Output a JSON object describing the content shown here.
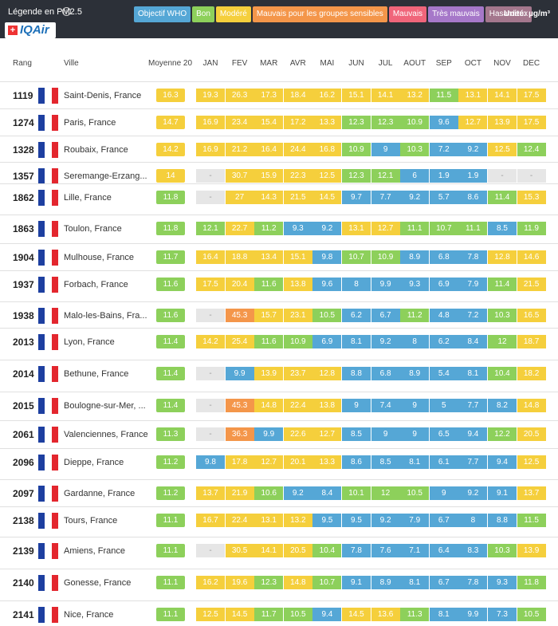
{
  "legend": {
    "title": "Légende en PM2.5",
    "info_glyph": "i",
    "logo_text": "IQAir",
    "logo_flag": "+",
    "unit": "Unité: µg/m³",
    "items": [
      {
        "label": "Objectif WHO",
        "color": "#55a7d6"
      },
      {
        "label": "Bon",
        "color": "#8dd05b"
      },
      {
        "label": "Modéré",
        "color": "#f5cf3c"
      },
      {
        "label": "Mauvais pour les groupes sensibles",
        "color": "#f4964a"
      },
      {
        "label": "Mauvais",
        "color": "#f0657a"
      },
      {
        "label": "Très mauvais",
        "color": "#a678c9"
      },
      {
        "label": "Hasardeux",
        "color": "#a4778d"
      }
    ]
  },
  "headers": {
    "rank": "Rang",
    "city": "Ville",
    "avg": "Moyenne 20",
    "months": [
      "JAN",
      "FEV",
      "MAR",
      "AVR",
      "MAI",
      "JUN",
      "JUL",
      "AOUT",
      "SEP",
      "OCT",
      "NOV",
      "DEC"
    ]
  },
  "colors": {
    "who": "#55a7d6",
    "good": "#8dd05b",
    "moderate": "#f5cf3c",
    "sensitive": "#f4964a",
    "nodata": "#e6e6e6"
  },
  "rows": [
    {
      "rank": "1119",
      "city": "Saint-Denis, France",
      "avg": "16.3",
      "months": [
        "19.3",
        "26.3",
        "17.3",
        "18.4",
        "16.2",
        "15.1",
        "14.1",
        "13.2",
        "11.5",
        "13.1",
        "14.1",
        "17.5"
      ]
    },
    {
      "rank": "1274",
      "city": "Paris, France",
      "avg": "14.7",
      "months": [
        "16.9",
        "23.4",
        "15.4",
        "17.2",
        "13.3",
        "12.3",
        "12.3",
        "10.9",
        "9.6",
        "12.7",
        "13.9",
        "17.5"
      ]
    },
    {
      "rank": "1328",
      "city": "Roubaix, France",
      "avg": "14.2",
      "months": [
        "16.9",
        "21.2",
        "16.4",
        "24.4",
        "16.8",
        "10.9",
        "9",
        "10.3",
        "7.2",
        "9.2",
        "12.5",
        "12.4"
      ]
    },
    {
      "rank": "1357",
      "city": "Seremange-Erzang...",
      "avg": "14",
      "months": [
        "-",
        "30.7",
        "15.9",
        "22.3",
        "12.5",
        "12.3",
        "12.1",
        "6",
        "1.9",
        "1.9",
        "-",
        "-"
      ]
    },
    {
      "rank": "1862",
      "city": "Lille, France",
      "avg": "11.8",
      "months": [
        "-",
        "27",
        "14.3",
        "21.5",
        "14.5",
        "9.7",
        "7.7",
        "9.2",
        "5.7",
        "8.6",
        "11.4",
        "15.3"
      ]
    },
    {
      "rank": "1863",
      "city": "Toulon, France",
      "avg": "11.8",
      "months": [
        "12.1",
        "22.7",
        "11.2",
        "9.3",
        "9.2",
        "13.1",
        "12.7",
        "11.1",
        "10.7",
        "11.1",
        "8.5",
        "11.9"
      ]
    },
    {
      "rank": "1904",
      "city": "Mulhouse, France",
      "avg": "11.7",
      "months": [
        "16.4",
        "18.8",
        "13.4",
        "15.1",
        "9.8",
        "10.7",
        "10.9",
        "8.9",
        "6.8",
        "7.8",
        "12.8",
        "14.6"
      ]
    },
    {
      "rank": "1937",
      "city": "Forbach, France",
      "avg": "11.6",
      "months": [
        "17.5",
        "20.4",
        "11.6",
        "13.8",
        "9.6",
        "8",
        "9.9",
        "9.3",
        "6.9",
        "7.9",
        "11.4",
        "21.5"
      ]
    },
    {
      "rank": "1938",
      "city": "Malo-les-Bains, Fra...",
      "avg": "11.6",
      "months": [
        "-",
        "45.3",
        "15.7",
        "23.1",
        "10.5",
        "6.2",
        "6.7",
        "11.2",
        "4.8",
        "7.2",
        "10.3",
        "16.5"
      ]
    },
    {
      "rank": "2013",
      "city": "Lyon, France",
      "avg": "11.4",
      "months": [
        "14.2",
        "25.4",
        "11.6",
        "10.9",
        "6.9",
        "8.1",
        "9.2",
        "8",
        "6.2",
        "8.4",
        "12",
        "18.7"
      ]
    },
    {
      "rank": "2014",
      "city": "Bethune, France",
      "avg": "11.4",
      "months": [
        "-",
        "9.9",
        "13.9",
        "23.7",
        "12.8",
        "8.8",
        "6.8",
        "8.9",
        "5.4",
        "8.1",
        "10.4",
        "18.2"
      ]
    },
    {
      "rank": "2015",
      "city": "Boulogne-sur-Mer, ...",
      "avg": "11.4",
      "months": [
        "-",
        "45.3",
        "14.8",
        "22.4",
        "13.8",
        "9",
        "7.4",
        "9",
        "5",
        "7.7",
        "8.2",
        "14.8"
      ]
    },
    {
      "rank": "2061",
      "city": "Valenciennes, France",
      "avg": "11.3",
      "months": [
        "-",
        "36.3",
        "9.9",
        "22.6",
        "12.7",
        "8.5",
        "9",
        "9",
        "6.5",
        "9.4",
        "12.2",
        "20.5"
      ]
    },
    {
      "rank": "2096",
      "city": "Dieppe, France",
      "avg": "11.2",
      "months": [
        "9.8",
        "17.8",
        "12.7",
        "20.1",
        "13.3",
        "8.6",
        "8.5",
        "8.1",
        "6.1",
        "7.7",
        "9.4",
        "12.5"
      ]
    },
    {
      "rank": "2097",
      "city": "Gardanne, France",
      "avg": "11.2",
      "months": [
        "13.7",
        "21.9",
        "10.6",
        "9.2",
        "8.4",
        "10.1",
        "12",
        "10.5",
        "9",
        "9.2",
        "9.1",
        "13.7"
      ]
    },
    {
      "rank": "2138",
      "city": "Tours, France",
      "avg": "11.1",
      "months": [
        "16.7",
        "22.4",
        "13.1",
        "13.2",
        "9.5",
        "9.5",
        "9.2",
        "7.9",
        "6.7",
        "8",
        "8.8",
        "11.5"
      ]
    },
    {
      "rank": "2139",
      "city": "Amiens, France",
      "avg": "11.1",
      "months": [
        "-",
        "30.5",
        "14.1",
        "20.5",
        "10.4",
        "7.8",
        "7.6",
        "7.1",
        "6.4",
        "8.3",
        "10.3",
        "13.9"
      ]
    },
    {
      "rank": "2140",
      "city": "Gonesse, France",
      "avg": "11.1",
      "months": [
        "16.2",
        "19.6",
        "12.3",
        "14.8",
        "10.7",
        "9.1",
        "8.9",
        "8.1",
        "6.7",
        "7.8",
        "9.3",
        "11.8"
      ]
    },
    {
      "rank": "2141",
      "city": "Nice, France",
      "avg": "11.1",
      "months": [
        "12.5",
        "14.5",
        "11.7",
        "10.5",
        "9.4",
        "14.5",
        "13.6",
        "11.3",
        "8.1",
        "9.9",
        "7.3",
        "10.5"
      ]
    }
  ]
}
